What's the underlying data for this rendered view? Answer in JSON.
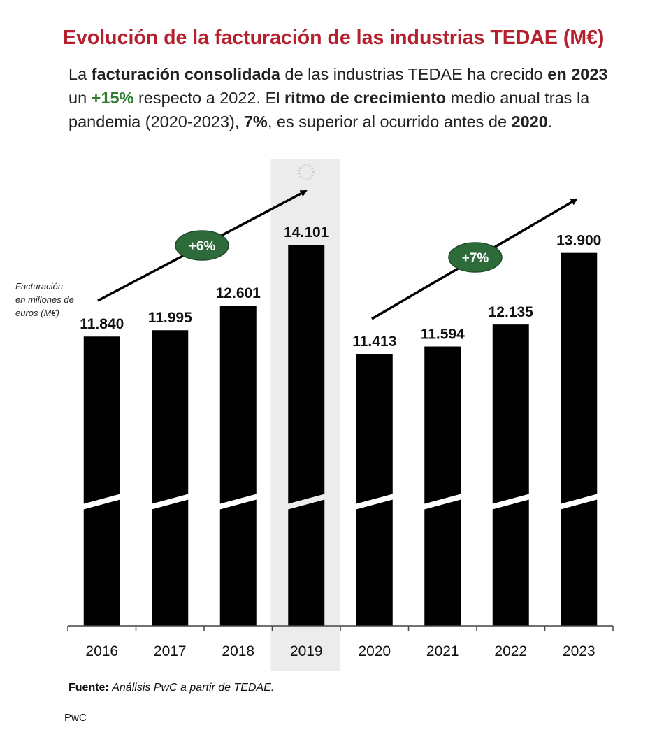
{
  "title": "Evolución de la facturación de las industrias TEDAE (M€)",
  "lead": {
    "t1": "La ",
    "b1": "facturación consolidada",
    "t2": " de las industrias TEDAE ha crecido ",
    "b2": "en 2023",
    "t3": " un ",
    "pct": "+15%",
    "t4": " respecto a 2022. El ",
    "b3": "ritmo de crecimiento",
    "t5": " medio anual tras la pandemia (2020-2023), ",
    "b4": "7%",
    "t6": ", es superior al ocurrido antes de ",
    "b5": "2020",
    "t7": "."
  },
  "chart_data": {
    "type": "bar",
    "categories": [
      "2016",
      "2017",
      "2018",
      "2019",
      "2020",
      "2021",
      "2022",
      "2023"
    ],
    "values": [
      11840,
      11995,
      12601,
      14101,
      11413,
      11594,
      12135,
      13900
    ],
    "value_labels": [
      "11.840",
      "11.995",
      "12.601",
      "14.101",
      "11.413",
      "11.594",
      "12.135",
      "13.900"
    ],
    "highlight": "2019",
    "axis_break": true,
    "ylabel_lines": [
      "Facturación",
      "en millones de",
      "euros (M€)"
    ],
    "growth_badges": [
      {
        "label": "+6%",
        "period": "2016-2019"
      },
      {
        "label": "+7%",
        "period": "2020-2023"
      }
    ],
    "colors": {
      "bar": "#000000",
      "highlight_band": "#ececec",
      "badge": "#2e6b3a",
      "badge_border": "#ffffff"
    }
  },
  "source": {
    "label": "Fuente:",
    "text": "Análisis PwC a partir de TEDAE."
  },
  "brand": "PwC"
}
